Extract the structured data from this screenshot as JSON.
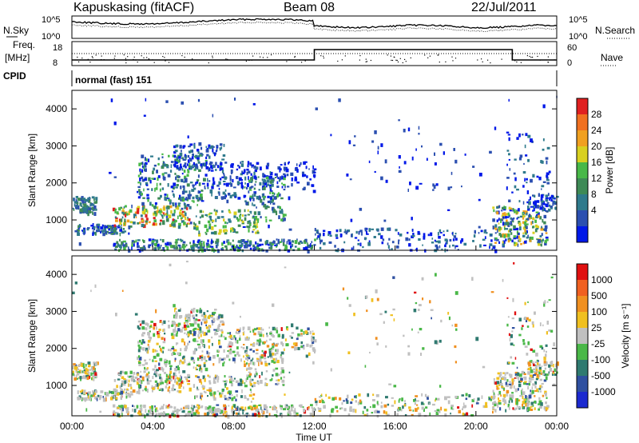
{
  "header": {
    "station": "Kapuskasing (fitACF)",
    "beam": "Beam 08",
    "date": "22/Jul/2011"
  },
  "top_panels": {
    "nsky_label": "N.Sky",
    "nsearch_label": "N.Search",
    "nsky_ticks": [
      "10^5",
      "10^0"
    ],
    "nsearch_ticks": [
      "10^5",
      "10^0"
    ],
    "freq_label": "Freq.",
    "freq_unit": "[MHz]",
    "freq_ticks": [
      "18",
      "8"
    ],
    "nave_label": "Nave",
    "nave_ticks": [
      "60",
      "0"
    ],
    "cpid_label": "CPID",
    "cpid_value": "normal (fast) 151"
  },
  "chart_data": [
    {
      "type": "heatmap",
      "name": "power",
      "ylabel": "Slant Range [km]",
      "yticks": [
        "4000",
        "3000",
        "2000",
        "1000"
      ],
      "ylim": [
        180,
        4500
      ],
      "xlim_hours": [
        0,
        24
      ],
      "colorbar_label": "Power [dB]",
      "colorbar_ticks": [
        "28",
        "24",
        "20",
        "16",
        "12",
        "8",
        "4"
      ],
      "colors": [
        "#0018e8",
        "#2b4fb0",
        "#2f7a8c",
        "#3e8a56",
        "#48b848",
        "#d8d020",
        "#f0a020",
        "#f07020",
        "#e02020"
      ]
    },
    {
      "type": "heatmap",
      "name": "velocity",
      "ylabel": "Slant Range [km]",
      "yticks": [
        "4000",
        "3000",
        "2000",
        "1000"
      ],
      "ylim": [
        180,
        4500
      ],
      "xlim_hours": [
        0,
        24
      ],
      "xlabel": "Time UT",
      "xticks": [
        "00:00",
        "04:00",
        "08:00",
        "12:00",
        "16:00",
        "20:00",
        "00:00"
      ],
      "colorbar_label": "Velocity [m s⁻¹]",
      "colorbar_ticks": [
        "1000",
        "500",
        "100",
        "25",
        "-25",
        "-100",
        "-500",
        "-1000"
      ],
      "colors": [
        "#1c2ad0",
        "#2f50a0",
        "#2f7a70",
        "#4ab848",
        "#c0c0c0",
        "#f0c020",
        "#f09020",
        "#f06020",
        "#e01010"
      ]
    }
  ]
}
